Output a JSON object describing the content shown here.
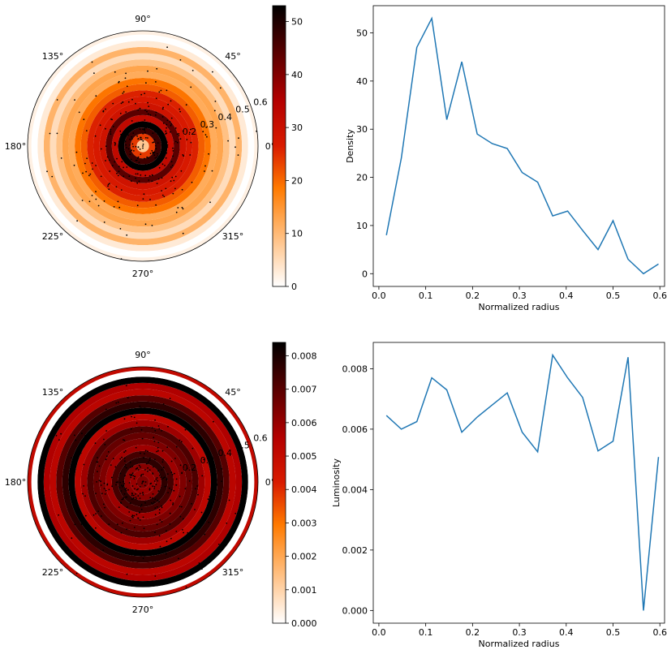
{
  "chart_data": [
    {
      "type": "polar_heatmap",
      "angle_ticks": [
        "0°",
        "45°",
        "90°",
        "135°",
        "180°",
        "225°",
        "270°",
        "315°"
      ],
      "angle_tick_degrees": [
        0,
        45,
        90,
        135,
        180,
        225,
        270,
        315
      ],
      "radial_ticks": [
        "0.2",
        "0.3",
        "0.4",
        "0.5",
        "0.6"
      ],
      "radial_tick_values": [
        0.2,
        0.3,
        0.4,
        0.5,
        0.6
      ],
      "rmax": 0.6,
      "ring_edges": [
        0,
        0.0323,
        0.0645,
        0.0968,
        0.129,
        0.1613,
        0.1935,
        0.2258,
        0.2581,
        0.2903,
        0.3226,
        0.3548,
        0.3871,
        0.4194,
        0.4516,
        0.4839,
        0.5161,
        0.5484,
        0.5806,
        0.6
      ],
      "ring_values": [
        8,
        24,
        47,
        53,
        32,
        44,
        29,
        27,
        26,
        21,
        19,
        12,
        13,
        9,
        5,
        11,
        3,
        0,
        2
      ],
      "colormap": "gist_heat_r",
      "colorbar": {
        "min": 0,
        "max": 53,
        "ticks": [
          "0",
          "10",
          "20",
          "30",
          "40",
          "50"
        ],
        "tick_values": [
          0,
          10,
          20,
          30,
          40,
          50
        ]
      },
      "scatter": "black point markers of the underlying sample"
    },
    {
      "type": "line",
      "x": [
        0.016,
        0.048,
        0.081,
        0.113,
        0.145,
        0.177,
        0.21,
        0.242,
        0.274,
        0.306,
        0.339,
        0.371,
        0.403,
        0.435,
        0.468,
        0.5,
        0.532,
        0.565,
        0.597
      ],
      "series": [
        {
          "values": [
            8,
            24,
            47,
            53,
            32,
            44,
            29,
            27,
            26,
            21,
            19,
            12,
            13,
            9,
            5,
            11,
            3,
            0,
            2
          ]
        }
      ],
      "xlabel": "Normalized radius",
      "ylabel": "Density",
      "xlim": [
        -0.012,
        0.61
      ],
      "ylim": [
        -2.65,
        55.65
      ],
      "xticks": [
        "0.0",
        "0.1",
        "0.2",
        "0.3",
        "0.4",
        "0.5",
        "0.6"
      ],
      "xtick_values": [
        0,
        0.1,
        0.2,
        0.3,
        0.4,
        0.5,
        0.6
      ],
      "yticks": [
        "0",
        "10",
        "20",
        "30",
        "40",
        "50"
      ],
      "ytick_values": [
        0,
        10,
        20,
        30,
        40,
        50
      ],
      "color": "#1f77b4"
    },
    {
      "type": "polar_heatmap",
      "angle_ticks": [
        "0°",
        "45°",
        "90°",
        "135°",
        "180°",
        "225°",
        "270°",
        "315°"
      ],
      "angle_tick_degrees": [
        0,
        45,
        90,
        135,
        180,
        225,
        270,
        315
      ],
      "radial_ticks": [
        "0.2",
        "0.3",
        "0.4",
        "0.5",
        "0.6"
      ],
      "radial_tick_values": [
        0.2,
        0.3,
        0.4,
        0.5,
        0.6
      ],
      "rmax": 0.6,
      "ring_edges": [
        0,
        0.0323,
        0.0645,
        0.0968,
        0.129,
        0.1613,
        0.1935,
        0.2258,
        0.2581,
        0.2903,
        0.3226,
        0.3548,
        0.3871,
        0.4194,
        0.4516,
        0.4839,
        0.5161,
        0.5484,
        0.5806,
        0.6
      ],
      "ring_values": [
        0.00645,
        0.006,
        0.00625,
        0.0077,
        0.0073,
        0.0059,
        0.0064,
        0.0068,
        0.0072,
        0.0059,
        0.00525,
        0.00845,
        0.0077,
        0.00705,
        0.00528,
        0.0056,
        0.00838,
        0.0,
        0.00508
      ],
      "colormap": "gist_heat_r",
      "colorbar": {
        "min": 0,
        "max": 0.0084,
        "ticks": [
          "0.000",
          "0.001",
          "0.002",
          "0.003",
          "0.004",
          "0.005",
          "0.006",
          "0.007",
          "0.008"
        ],
        "tick_values": [
          0,
          0.001,
          0.002,
          0.003,
          0.004,
          0.005,
          0.006,
          0.007,
          0.008
        ]
      },
      "scatter": "black point markers of the underlying sample"
    },
    {
      "type": "line",
      "x": [
        0.016,
        0.048,
        0.081,
        0.113,
        0.145,
        0.177,
        0.21,
        0.242,
        0.274,
        0.306,
        0.339,
        0.371,
        0.403,
        0.435,
        0.468,
        0.5,
        0.532,
        0.565,
        0.597
      ],
      "series": [
        {
          "values": [
            0.00645,
            0.006,
            0.00625,
            0.0077,
            0.0073,
            0.0059,
            0.0064,
            0.0068,
            0.0072,
            0.0059,
            0.00525,
            0.00845,
            0.0077,
            0.00705,
            0.00528,
            0.0056,
            0.00838,
            0.0,
            0.00508
          ]
        }
      ],
      "xlabel": "Normalized radius",
      "ylabel": "Luminosity",
      "xlim": [
        -0.012,
        0.61
      ],
      "ylim": [
        -0.00042,
        0.00887
      ],
      "xticks": [
        "0.0",
        "0.1",
        "0.2",
        "0.3",
        "0.4",
        "0.5",
        "0.6"
      ],
      "xtick_values": [
        0,
        0.1,
        0.2,
        0.3,
        0.4,
        0.5,
        0.6
      ],
      "yticks": [
        "0.000",
        "0.002",
        "0.004",
        "0.006",
        "0.008"
      ],
      "ytick_values": [
        0,
        0.002,
        0.004,
        0.006,
        0.008
      ],
      "color": "#1f77b4"
    }
  ]
}
